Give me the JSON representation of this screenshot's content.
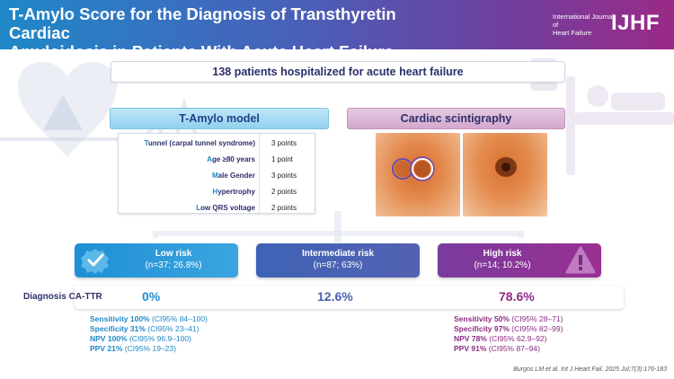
{
  "header": {
    "title_line1": "T-Amylo Score for the Diagnosis of Transthyretin Cardiac",
    "title_line2": "Amyloidosis in Patients With Acute Heart Failure",
    "journal_line1": "International Journal of",
    "journal_line2": "Heart Failure",
    "logo": "IJHF"
  },
  "patients_banner": "138 patients hospitalized for acute heart failure",
  "model": {
    "title": "T-Amylo model",
    "rows": [
      {
        "first": "T",
        "rest": "unnel (carpal tunnel syndrome)",
        "points": "3 points"
      },
      {
        "first": "A",
        "rest": "ge ≥80 years",
        "points": "1 point"
      },
      {
        "first": "M",
        "rest": "ale Gender",
        "points": "3 points"
      },
      {
        "first": "H",
        "rest": "ypertrophy",
        "points": "2 points"
      },
      {
        "first": "L",
        "rest": "ow QRS voltage",
        "points": "2 points"
      }
    ]
  },
  "scintigraphy": {
    "title": "Cardiac scintigraphy"
  },
  "risks": {
    "low": {
      "title": "Low risk",
      "detail": "(n=37; 26.8%)"
    },
    "intermediate": {
      "title": "Intermediate risk",
      "detail": "(n=87; 63%)"
    },
    "high": {
      "title": "High risk",
      "detail": "(n=14; 10.2%)"
    }
  },
  "diagnosis": {
    "label": "Diagnosis CA-TTR",
    "low": "0%",
    "intermediate": "12.6%",
    "high": "78.6%"
  },
  "stats_low": [
    {
      "metric": "Sensitivity 100%",
      "ci": "(CI95% 84–100)"
    },
    {
      "metric": "Specificity 31%",
      "ci": "(CI95% 23–41)"
    },
    {
      "metric": "NPV 100%",
      "ci": "(CI95% 96.9–100)"
    },
    {
      "metric": "PPV 21%",
      "ci": "(CI95% 19–23)"
    }
  ],
  "stats_high": [
    {
      "metric": "Sensitivity 50%",
      "ci": "(CI95% 28–71)"
    },
    {
      "metric": "Specificity 97%",
      "ci": "(CI95% 82–99)"
    },
    {
      "metric": "NPV 78%",
      "ci": "(CI95% 62.9–92)"
    },
    {
      "metric": "PPV 91%",
      "ci": "(CI95% 87–94)"
    }
  ],
  "citation": "Burgos LM et al. Int J Heart Fail. 2025 Jul;7(3):176-183",
  "colors": {
    "low": "#1f8fd4",
    "intermediate": "#4a5fb4",
    "high": "#8e2c84",
    "text_dark": "#2b2f6b"
  },
  "icons": [
    "heart-icon",
    "warning-icon",
    "ecg-icon",
    "hospital-bed-icon",
    "check-icon",
    "alert-icon"
  ]
}
